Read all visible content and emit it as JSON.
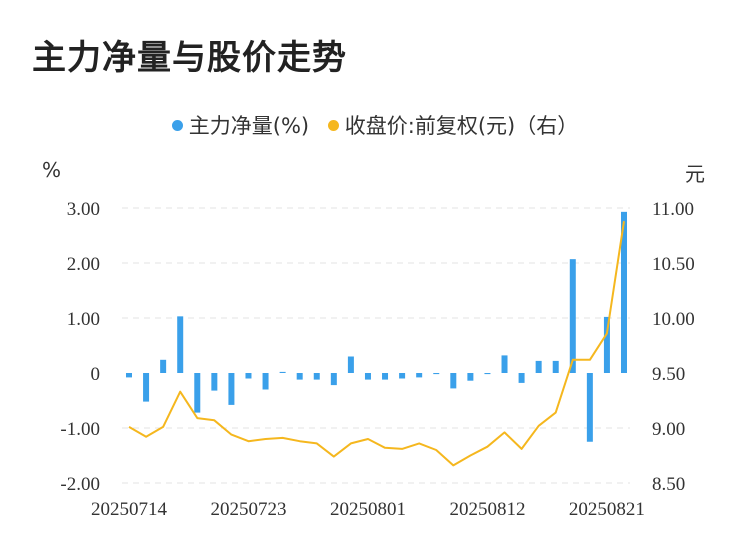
{
  "title": "主力净量与股价走势",
  "legend": {
    "bar_label": "主力净量(%)",
    "line_label": "收盘价:前复权(元)（右）"
  },
  "units": {
    "left": "%",
    "right": "元"
  },
  "colors": {
    "bar": "#3aa0ea",
    "line": "#f5b71e",
    "grid": "#e3e3e3",
    "text": "#333333"
  },
  "chart_data": {
    "type": "bar",
    "title": "主力净量与股价走势",
    "x_tick_labels": [
      "20250714",
      "20250723",
      "20250801",
      "20250812",
      "20250821"
    ],
    "x_tick_index": [
      0,
      7,
      14,
      21,
      28
    ],
    "left_axis": {
      "label": "%",
      "ylim": [
        -2.0,
        3.0
      ],
      "ticks": [
        3.0,
        2.0,
        1.0,
        0.0,
        -1.0,
        -2.0
      ],
      "tick_labels": [
        "3.00",
        "2.00",
        "1.00",
        "0",
        "-1.00",
        "-2.00"
      ]
    },
    "right_axis": {
      "label": "元",
      "ylim": [
        8.5,
        11.0
      ],
      "ticks": [
        11.0,
        10.5,
        10.0,
        9.5,
        9.0,
        8.5
      ],
      "tick_labels": [
        "11.00",
        "10.50",
        "10.00",
        "9.50",
        "9.00",
        "8.50"
      ]
    },
    "grid": true,
    "legend_position": "top-center",
    "series": [
      {
        "name": "主力净量(%)",
        "type": "bar",
        "axis": "left",
        "values": [
          -0.08,
          -0.52,
          0.24,
          1.03,
          -0.72,
          -0.32,
          -0.58,
          -0.1,
          -0.3,
          0.02,
          -0.12,
          -0.12,
          -0.22,
          0.3,
          -0.12,
          -0.12,
          -0.1,
          -0.08,
          -0.02,
          -0.28,
          -0.14,
          -0.02,
          0.32,
          -0.18,
          0.22,
          0.22,
          2.07,
          -1.25,
          1.02,
          2.93
        ]
      },
      {
        "name": "收盘价:前复权(元)（右）",
        "type": "line",
        "axis": "right",
        "values": [
          9.01,
          8.92,
          9.01,
          9.33,
          9.09,
          9.07,
          8.94,
          8.88,
          8.9,
          8.91,
          8.88,
          8.86,
          8.74,
          8.86,
          8.9,
          8.82,
          8.81,
          8.86,
          8.8,
          8.66,
          8.75,
          8.83,
          8.96,
          8.81,
          9.02,
          9.14,
          9.62,
          9.62,
          9.86,
          10.88
        ]
      }
    ]
  }
}
